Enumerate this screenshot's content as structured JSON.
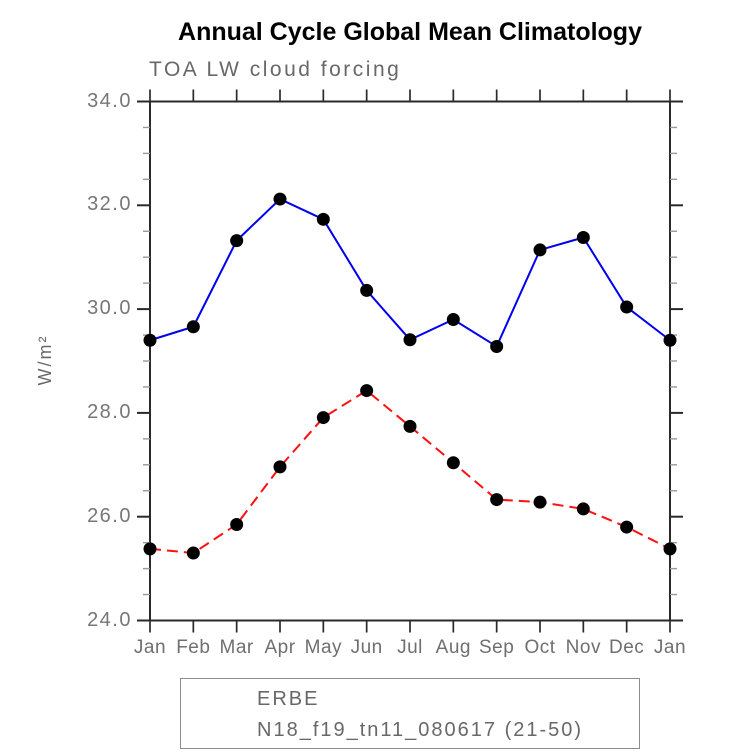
{
  "figure": {
    "title": "Annual Cycle Global Mean Climatology",
    "subtitle": "TOA LW cloud forcing",
    "ylabel": "W/m²"
  },
  "chart_data": {
    "type": "line",
    "title": "Annual Cycle Global Mean Climatology",
    "subtitle": "TOA LW cloud forcing",
    "xlabel": "",
    "ylabel": "W/m²",
    "categories": [
      "Jan",
      "Feb",
      "Mar",
      "Apr",
      "May",
      "Jun",
      "Jul",
      "Aug",
      "Sep",
      "Oct",
      "Nov",
      "Dec",
      "Jan"
    ],
    "series": [
      {
        "name": "ERBE",
        "line_style": "solid",
        "color": "#0000ee",
        "marker": "filled-circle",
        "marker_color": "#000000",
        "values": [
          29.4,
          29.66,
          31.32,
          32.12,
          31.73,
          30.36,
          29.41,
          29.8,
          29.28,
          31.14,
          31.38,
          30.04,
          29.4
        ]
      },
      {
        "name": "N18_f19_tn11_080617 (21-50)",
        "line_style": "dashed",
        "color": "#ff1010",
        "marker": "filled-circle",
        "marker_color": "#000000",
        "values": [
          25.38,
          25.3,
          25.85,
          26.96,
          27.91,
          28.43,
          27.74,
          27.04,
          26.33,
          26.28,
          26.15,
          25.8,
          25.38
        ]
      }
    ],
    "ylim": [
      24.0,
      34.0
    ],
    "yticks": {
      "values": [
        24,
        26,
        28,
        30,
        32,
        34
      ],
      "labels": [
        "24.0",
        "26.0",
        "28.0",
        "30.0",
        "32.0",
        "34.0"
      ],
      "minor_step": 0.5
    },
    "grid": false,
    "legend_position": "bottom"
  },
  "colors": {
    "axis": "#2a2a2a",
    "minor_tick": "#999999",
    "text_gray": "#686868",
    "title_text": "#000000",
    "legend_border": "#8c8c8c",
    "background": "#ffffff",
    "series_blue": "#0000ee",
    "series_red": "#ff1010",
    "marker_black": "#000000"
  }
}
